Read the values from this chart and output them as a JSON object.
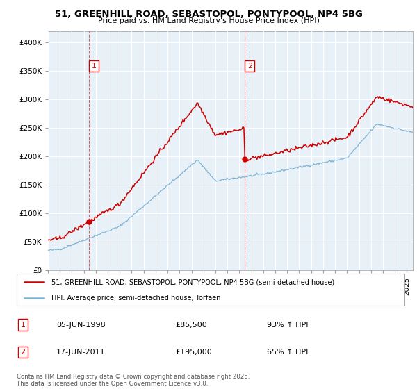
{
  "title": "51, GREENHILL ROAD, SEBASTOPOL, PONTYPOOL, NP4 5BG",
  "subtitle": "Price paid vs. HM Land Registry's House Price Index (HPI)",
  "legend_line1": "51, GREENHILL ROAD, SEBASTOPOL, PONTYPOOL, NP4 5BG (semi-detached house)",
  "legend_line2": "HPI: Average price, semi-detached house, Torfaen",
  "annotation1_date": "05-JUN-1998",
  "annotation1_price": "£85,500",
  "annotation1_hpi": "93% ↑ HPI",
  "annotation2_date": "17-JUN-2011",
  "annotation2_price": "£195,000",
  "annotation2_hpi": "65% ↑ HPI",
  "footnote": "Contains HM Land Registry data © Crown copyright and database right 2025.\nThis data is licensed under the Open Government Licence v3.0.",
  "red_color": "#cc0000",
  "blue_color": "#7fb3d3",
  "purchase1_year": 1998.42,
  "purchase1_price": 85500,
  "purchase2_year": 2011.42,
  "purchase2_price": 195000,
  "ylim": [
    0,
    420000
  ],
  "xlim": [
    1995,
    2025.5
  ],
  "bg_color": "#e8f0f8"
}
